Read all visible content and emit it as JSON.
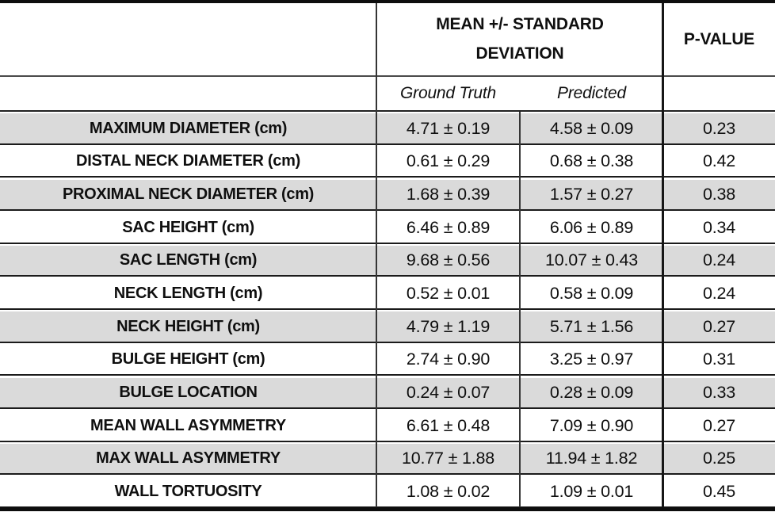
{
  "table": {
    "header": {
      "mean_sd_label": "MEAN +/- STANDARD DEVIATION",
      "p_value_label": "P-VALUE",
      "ground_truth_label": "Ground Truth",
      "predicted_label": "Predicted"
    },
    "rows": [
      {
        "metric": "MAXIMUM DIAMETER (cm)",
        "ground_truth": "4.71 ± 0.19",
        "predicted": "4.58 ± 0.09",
        "p_value": "0.23"
      },
      {
        "metric": "DISTAL NECK DIAMETER (cm)",
        "ground_truth": "0.61 ± 0.29",
        "predicted": "0.68 ± 0.38",
        "p_value": "0.42"
      },
      {
        "metric": "PROXIMAL NECK DIAMETER (cm)",
        "ground_truth": "1.68 ± 0.39",
        "predicted": "1.57 ± 0.27",
        "p_value": "0.38"
      },
      {
        "metric": "SAC HEIGHT (cm)",
        "ground_truth": "6.46 ± 0.89",
        "predicted": "6.06 ± 0.89",
        "p_value": "0.34"
      },
      {
        "metric": "SAC LENGTH (cm)",
        "ground_truth": "9.68 ± 0.56",
        "predicted": "10.07 ± 0.43",
        "p_value": "0.24"
      },
      {
        "metric": "NECK LENGTH (cm)",
        "ground_truth": "0.52 ± 0.01",
        "predicted": "0.58 ± 0.09",
        "p_value": "0.24"
      },
      {
        "metric": "NECK HEIGHT (cm)",
        "ground_truth": "4.79 ± 1.19",
        "predicted": "5.71 ± 1.56",
        "p_value": "0.27"
      },
      {
        "metric": "BULGE HEIGHT (cm)",
        "ground_truth": "2.74 ± 0.90",
        "predicted": "3.25 ± 0.97",
        "p_value": "0.31"
      },
      {
        "metric": "BULGE LOCATION",
        "ground_truth": "0.24 ± 0.07",
        "predicted": "0.28 ± 0.09",
        "p_value": "0.33"
      },
      {
        "metric": "MEAN WALL ASYMMETRY",
        "ground_truth": "6.61 ± 0.48",
        "predicted": "7.09 ± 0.90",
        "p_value": "0.27"
      },
      {
        "metric": "MAX WALL ASYMMETRY",
        "ground_truth": "10.77 ± 1.88",
        "predicted": "11.94 ± 1.82",
        "p_value": "0.25"
      },
      {
        "metric": "WALL TORTUOSITY",
        "ground_truth": "1.08 ± 0.02",
        "predicted": "1.09 ± 0.01",
        "p_value": "0.45"
      }
    ],
    "colors": {
      "row_shade": "#dadada",
      "border_black": "#0d0d0d",
      "grid_gray": "#353535"
    }
  }
}
